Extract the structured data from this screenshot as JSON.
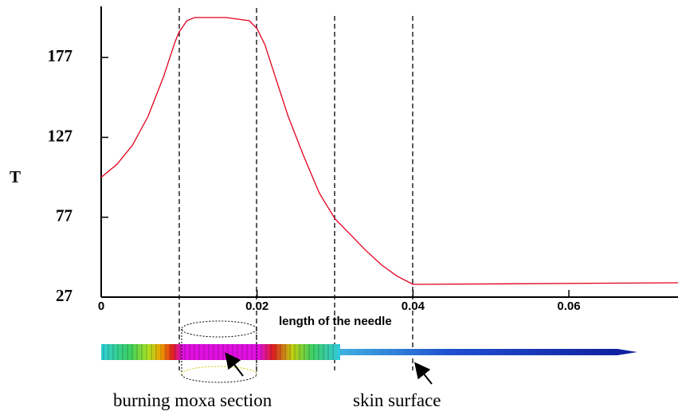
{
  "chart_data": {
    "type": "line",
    "x_label": "length of the needle",
    "y_label": "T",
    "x": [
      0,
      0.002,
      0.004,
      0.006,
      0.008,
      0.0095,
      0.01,
      0.011,
      0.012,
      0.016,
      0.019,
      0.02,
      0.021,
      0.022,
      0.024,
      0.026,
      0.028,
      0.03,
      0.032,
      0.034,
      0.036,
      0.038,
      0.04,
      0.074
    ],
    "series": [
      {
        "color": "#e0001c",
        "values": [
          102,
          110,
          122,
          140,
          165,
          187,
          193,
          200,
          202,
          202,
          200,
          195,
          185,
          170,
          140,
          115,
          92,
          76,
          66,
          56,
          47,
          40,
          35,
          36
        ]
      }
    ],
    "xlim": [
      0,
      0.074
    ],
    "ylim": [
      27,
      209
    ],
    "xticks": [
      0,
      0.02,
      0.04,
      0.06
    ],
    "yticks": [
      27,
      77,
      127,
      177
    ],
    "annotations": [
      "burning moxa section",
      "skin surface"
    ]
  }
}
